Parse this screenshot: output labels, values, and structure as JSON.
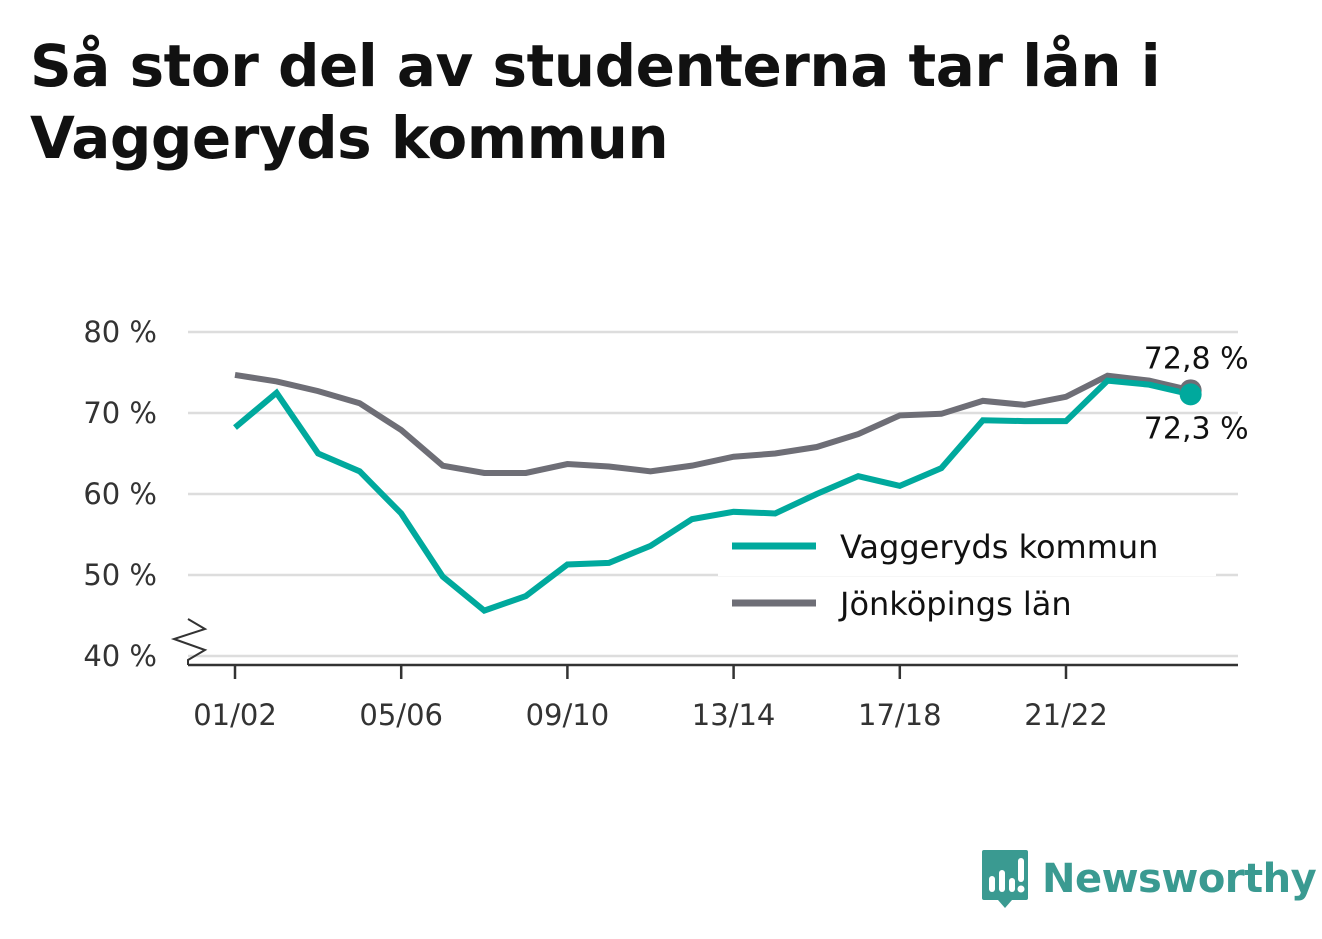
{
  "title": "Så stor del av studenterna tar lån i Vaggeryds kommun",
  "brand": {
    "name": "Newsworthy",
    "color": "#3a9a91",
    "icon": "bar-chart-speech-bubble-icon"
  },
  "chart_data": {
    "type": "line",
    "categories": [
      "01/02",
      "02/03",
      "03/04",
      "04/05",
      "05/06",
      "06/07",
      "07/08",
      "08/09",
      "09/10",
      "10/11",
      "11/12",
      "12/13",
      "13/14",
      "14/15",
      "15/16",
      "16/17",
      "17/18",
      "18/19",
      "19/20",
      "20/21",
      "21/22",
      "22/23",
      "23/24",
      "24/25"
    ],
    "x_tick_labels": [
      "01/02",
      "05/06",
      "09/10",
      "13/14",
      "17/18",
      "21/22"
    ],
    "y_tick_labels": [
      "80 %",
      "70 %",
      "60 %",
      "50 %",
      "40 %"
    ],
    "y_ticks": [
      80,
      70,
      60,
      50,
      40
    ],
    "ylim": [
      40,
      80
    ],
    "y_axis_break": true,
    "grid": true,
    "legend_position": "bottom-right",
    "series": [
      {
        "name": "Vaggeryds kommun",
        "color": "#00a99d",
        "values": [
          68.2,
          72.5,
          65.0,
          62.8,
          57.6,
          49.8,
          45.6,
          47.4,
          51.3,
          51.5,
          53.6,
          56.9,
          57.8,
          57.6,
          60.0,
          62.2,
          61.0,
          63.2,
          69.1,
          69.0,
          69.0,
          74.0,
          73.5,
          72.3
        ],
        "end_label": "72,3 %"
      },
      {
        "name": "Jönköpings län",
        "color": "#6e6e76",
        "values": [
          74.7,
          73.9,
          72.7,
          71.2,
          67.9,
          63.5,
          62.6,
          62.6,
          63.7,
          63.4,
          62.8,
          63.5,
          64.6,
          65.0,
          65.8,
          67.4,
          69.7,
          69.9,
          71.5,
          71.0,
          72.0,
          74.6,
          74.0,
          72.8
        ],
        "end_label": "72,8 %"
      }
    ]
  }
}
